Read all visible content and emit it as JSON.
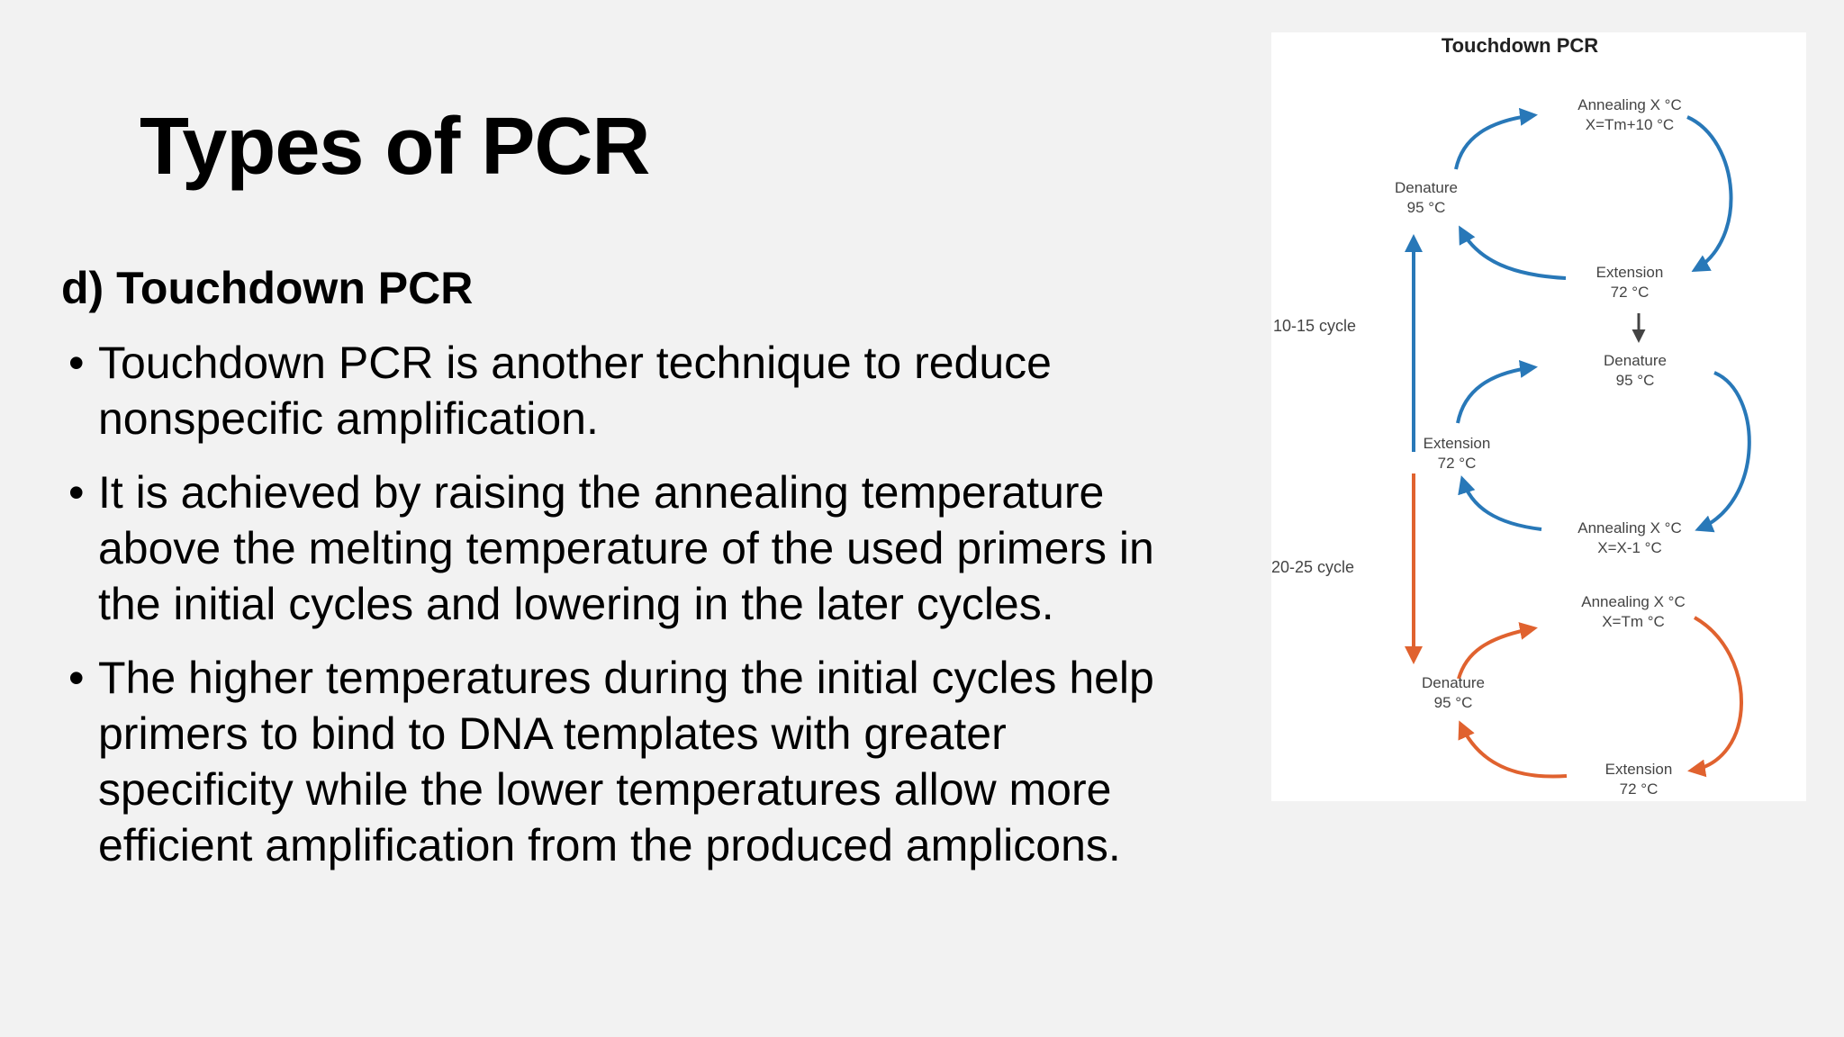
{
  "slide": {
    "title": "Types of PCR",
    "subheading": "d) Touchdown PCR",
    "bullet_glyph": "•",
    "bullets": [
      {
        "lines": [
          "Touchdown PCR is another technique to reduce",
          "nonspecific amplification."
        ]
      },
      {
        "lines": [
          "It is achieved by raising the annealing temperature",
          "above the melting temperature of the used primers in",
          "the initial cycles and lowering in the later cycles."
        ]
      },
      {
        "lines": [
          "The higher temperatures during the initial cycles help",
          "primers to bind to DNA templates with greater",
          "specificity while the lower temperatures allow more",
          "efficient amplification from the produced amplicons."
        ]
      }
    ]
  },
  "diagram": {
    "title": "Touchdown PCR",
    "colors": {
      "blue": "#2878b8",
      "orange": "#e0622f",
      "text": "#444444"
    },
    "cycle1": {
      "annealing": [
        "Annealing X °C",
        "X=Tm+10 °C"
      ],
      "denature": [
        "Denature",
        "95 °C"
      ],
      "extension": [
        "Extension",
        "72 °C"
      ]
    },
    "cycle2": {
      "denature": [
        "Denature",
        "95 °C"
      ],
      "extension": [
        "Extension",
        "72 °C"
      ],
      "annealing": [
        "Annealing X °C",
        "X=X-1 °C"
      ]
    },
    "cycle3": {
      "annealing": [
        "Annealing X °C",
        "X=Tm °C"
      ],
      "denature": [
        "Denature",
        "95 °C"
      ],
      "extension": [
        "Extension",
        "72 °C"
      ]
    },
    "cycle_label_top": "10-15 cycle",
    "cycle_label_bottom": "20-25 cycle"
  }
}
